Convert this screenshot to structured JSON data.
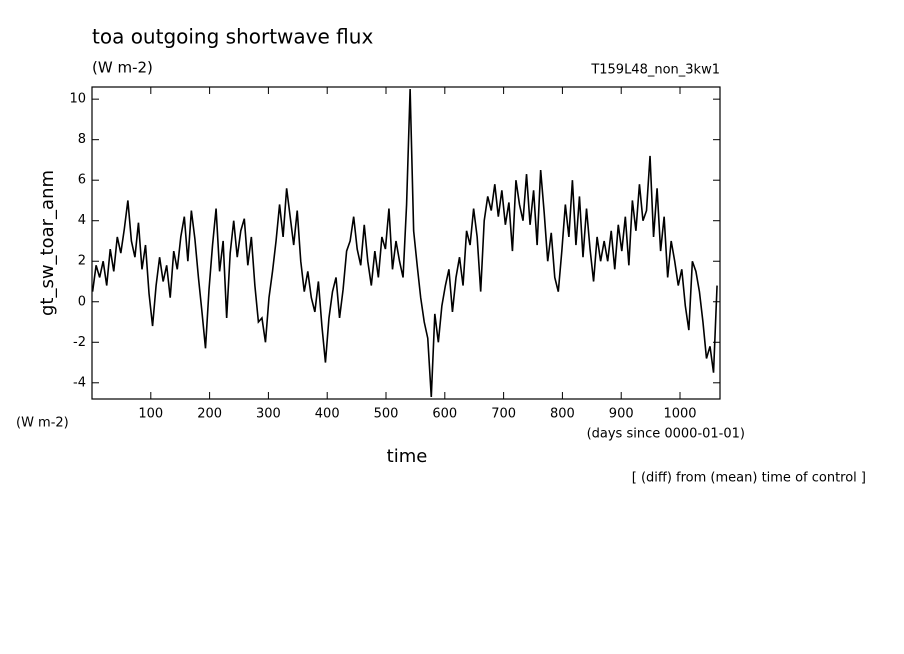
{
  "chart_data": {
    "type": "line",
    "title": "toa outgoing shortwave flux",
    "subtitle": "(W m-2)",
    "run_label": "T159L48_non_3kw1",
    "y_label": "gt_sw_toar_anm",
    "y_unit": "(W m-2)",
    "x_unit": "(days since 0000-01-01)",
    "x_label": "time",
    "note": "[ (diff) from (mean) time of control ]",
    "xlim": [
      0,
      1068
    ],
    "ylim": [
      -4.8,
      10.6
    ],
    "xticks": [
      100,
      200,
      300,
      400,
      500,
      600,
      700,
      800,
      900,
      1000
    ],
    "yticks": [
      -4,
      -2,
      0,
      2,
      4,
      6,
      8,
      10
    ],
    "x": [
      1,
      7,
      13,
      19,
      25,
      31,
      37,
      43,
      49,
      55,
      61,
      67,
      73,
      79,
      85,
      91,
      97,
      103,
      109,
      115,
      121,
      127,
      133,
      139,
      145,
      151,
      157,
      163,
      169,
      175,
      181,
      187,
      193,
      199,
      205,
      211,
      217,
      223,
      229,
      235,
      241,
      247,
      253,
      259,
      265,
      271,
      277,
      283,
      289,
      295,
      301,
      307,
      313,
      319,
      325,
      331,
      337,
      343,
      349,
      355,
      361,
      367,
      373,
      379,
      385,
      391,
      397,
      403,
      409,
      415,
      421,
      427,
      433,
      439,
      445,
      451,
      457,
      463,
      469,
      475,
      481,
      487,
      493,
      499,
      505,
      511,
      517,
      523,
      529,
      535,
      541,
      547,
      553,
      559,
      565,
      571,
      577,
      583,
      589,
      595,
      601,
      607,
      613,
      619,
      625,
      631,
      637,
      643,
      649,
      655,
      661,
      667,
      673,
      679,
      685,
      691,
      697,
      703,
      709,
      715,
      721,
      727,
      733,
      739,
      745,
      751,
      757,
      763,
      769,
      775,
      781,
      787,
      793,
      799,
      805,
      811,
      817,
      823,
      829,
      835,
      841,
      847,
      853,
      859,
      865,
      871,
      877,
      883,
      889,
      895,
      901,
      907,
      913,
      919,
      925,
      931,
      937,
      943,
      949,
      955,
      961,
      967,
      973,
      979,
      985,
      991,
      997,
      1003,
      1009,
      1015,
      1021,
      1027,
      1033,
      1039,
      1045,
      1051,
      1057,
      1063
    ],
    "series": [
      {
        "color": "#000000",
        "values": [
          0.5,
          1.8,
          1.2,
          2.0,
          0.8,
          2.6,
          1.5,
          3.2,
          2.4,
          3.6,
          5.0,
          3.0,
          2.2,
          3.9,
          1.6,
          2.8,
          0.4,
          -1.2,
          0.8,
          2.2,
          1.0,
          1.8,
          0.2,
          2.5,
          1.6,
          3.2,
          4.2,
          2.0,
          4.5,
          3.1,
          1.2,
          -0.5,
          -2.3,
          0.6,
          2.8,
          4.6,
          1.5,
          3.0,
          -0.8,
          2.4,
          4.0,
          2.2,
          3.5,
          4.1,
          1.8,
          3.2,
          0.8,
          -1.0,
          -0.8,
          -2.0,
          0.2,
          1.5,
          3.0,
          4.8,
          3.2,
          5.6,
          4.2,
          2.8,
          4.5,
          2.0,
          0.5,
          1.5,
          0.2,
          -0.5,
          1.0,
          -1.2,
          -3.0,
          -0.8,
          0.5,
          1.2,
          -0.8,
          0.6,
          2.5,
          3.0,
          4.2,
          2.6,
          1.8,
          3.8,
          2.0,
          0.8,
          2.5,
          1.2,
          3.2,
          2.6,
          4.6,
          1.6,
          3.0,
          2.0,
          1.2,
          4.8,
          10.5,
          3.5,
          1.8,
          0.2,
          -1.0,
          -1.8,
          -4.7,
          -0.6,
          -2.0,
          -0.2,
          0.8,
          1.6,
          -0.5,
          1.2,
          2.2,
          0.8,
          3.5,
          2.8,
          4.6,
          3.2,
          0.5,
          4.0,
          5.2,
          4.5,
          5.8,
          4.2,
          5.5,
          3.8,
          4.9,
          2.5,
          6.0,
          4.8,
          4.0,
          6.3,
          3.8,
          5.5,
          2.8,
          6.5,
          4.4,
          2.0,
          3.4,
          1.2,
          0.5,
          2.5,
          4.8,
          3.2,
          6.0,
          2.8,
          5.2,
          2.2,
          4.6,
          2.6,
          1.0,
          3.2,
          2.0,
          3.0,
          2.0,
          3.5,
          1.6,
          3.8,
          2.5,
          4.2,
          1.8,
          5.0,
          3.5,
          5.8,
          4.0,
          4.5,
          7.2,
          3.2,
          5.6,
          2.5,
          4.2,
          1.2,
          3.0,
          2.0,
          0.8,
          1.6,
          -0.2,
          -1.4,
          2.0,
          1.5,
          0.5,
          -1.0,
          -2.8,
          -2.2,
          -3.5,
          0.8
        ]
      }
    ]
  }
}
